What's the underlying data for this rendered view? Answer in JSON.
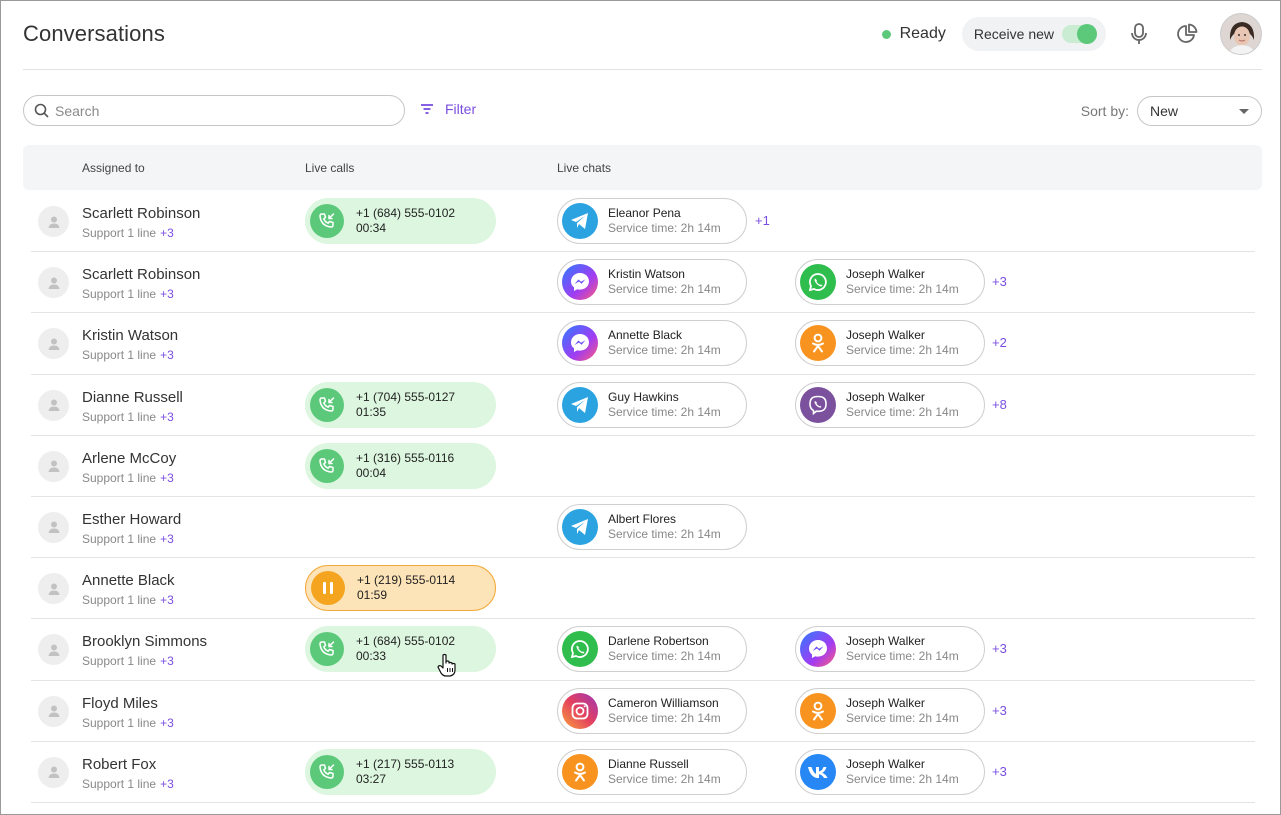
{
  "header": {
    "title": "Conversations",
    "status": "Ready",
    "receive_label": "Receive new"
  },
  "toolbar": {
    "search_placeholder": "Search",
    "filter_label": "Filter",
    "sort_label": "Sort by:",
    "sort_value": "New"
  },
  "table": {
    "columns": [
      "Assigned to",
      "Live calls",
      "Live chats"
    ]
  },
  "colors": {
    "accent": "#7a4fe0",
    "call_active": "#5cc97a",
    "call_hold": "#f4a41f"
  },
  "rows": [
    {
      "name": "Scarlett Robinson",
      "line": "Support 1 line",
      "more": "+3",
      "call": {
        "number": "+1 (684) 555-0102",
        "time": "00:34",
        "state": "active"
      },
      "chats": [
        {
          "channel": "telegram",
          "name": "Eleanor Pena",
          "time": "Service time: 2h 14m"
        }
      ],
      "more_chats": "+1"
    },
    {
      "name": "Scarlett Robinson",
      "line": "Support 1 line",
      "more": "+3",
      "call": null,
      "chats": [
        {
          "channel": "messenger",
          "name": "Kristin Watson",
          "time": "Service time: 2h 14m"
        },
        {
          "channel": "whatsapp",
          "name": "Joseph Walker",
          "time": "Service time: 2h 14m"
        }
      ],
      "more_chats": "+3"
    },
    {
      "name": "Kristin Watson",
      "line": "Support 1 line",
      "more": "+3",
      "call": null,
      "chats": [
        {
          "channel": "messenger",
          "name": "Annette Black",
          "time": "Service time: 2h 14m"
        },
        {
          "channel": "odnoklassniki",
          "name": "Joseph Walker",
          "time": "Service time: 2h 14m"
        }
      ],
      "more_chats": "+2"
    },
    {
      "name": "Dianne Russell",
      "line": "Support 1 line",
      "more": "+3",
      "call": {
        "number": "+1 (704) 555-0127",
        "time": "01:35",
        "state": "active"
      },
      "chats": [
        {
          "channel": "telegram",
          "name": "Guy Hawkins",
          "time": "Service time: 2h 14m"
        },
        {
          "channel": "viber",
          "name": "Joseph Walker",
          "time": "Service time: 2h 14m"
        }
      ],
      "more_chats": "+8"
    },
    {
      "name": "Arlene McCoy",
      "line": "Support 1 line",
      "more": "+3",
      "call": {
        "number": "+1 (316) 555-0116",
        "time": "00:04",
        "state": "active"
      },
      "chats": [],
      "more_chats": ""
    },
    {
      "name": "Esther Howard",
      "line": "Support 1 line",
      "more": "+3",
      "call": null,
      "chats": [
        {
          "channel": "telegram",
          "name": "Albert Flores",
          "time": "Service time: 2h 14m"
        }
      ],
      "more_chats": ""
    },
    {
      "name": "Annette Black",
      "line": "Support 1 line",
      "more": "+3",
      "call": {
        "number": "+1 (219) 555-0114",
        "time": "01:59",
        "state": "hold"
      },
      "chats": [],
      "more_chats": ""
    },
    {
      "name": "Brooklyn Simmons",
      "line": "Support 1 line",
      "more": "+3",
      "call": {
        "number": "+1 (684) 555-0102",
        "time": "00:33",
        "state": "active"
      },
      "chats": [
        {
          "channel": "whatsapp",
          "name": "Darlene Robertson",
          "time": "Service time: 2h 14m"
        },
        {
          "channel": "messenger",
          "name": "Joseph Walker",
          "time": "Service time: 2h 14m"
        }
      ],
      "more_chats": "+3"
    },
    {
      "name": "Floyd Miles",
      "line": "Support 1 line",
      "more": "+3",
      "call": null,
      "chats": [
        {
          "channel": "instagram",
          "name": "Cameron Williamson",
          "time": "Service time: 2h 14m"
        },
        {
          "channel": "odnoklassniki",
          "name": "Joseph Walker",
          "time": "Service time: 2h 14m"
        }
      ],
      "more_chats": "+3"
    },
    {
      "name": "Robert Fox",
      "line": "Support 1 line",
      "more": "+3",
      "call": {
        "number": "+1 (217) 555-0113",
        "time": "03:27",
        "state": "active"
      },
      "chats": [
        {
          "channel": "odnoklassniki",
          "name": "Dianne Russell",
          "time": "Service time: 2h 14m"
        },
        {
          "channel": "vk",
          "name": "Joseph Walker",
          "time": "Service time: 2h 14m"
        }
      ],
      "more_chats": "+3"
    }
  ]
}
